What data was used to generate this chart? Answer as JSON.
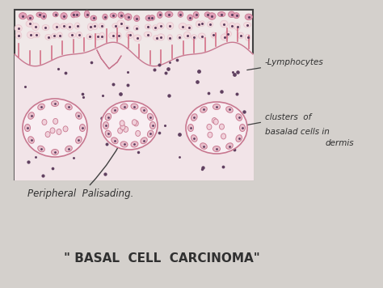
{
  "paper_color": "#d4d0cc",
  "title": "\" BASAL  CELL  CARCINOMA\"",
  "label_lymphocytes": "-Lymphocytes",
  "label_clusters": "clusters  of",
  "label_basal": "basalad cells in",
  "label_dermis": "dermis",
  "label_peripheral": "Peripheral  Palisading.",
  "tissue_bg": "#f0e8e8",
  "cell_color_light": "#e8c8d0",
  "cell_color_dark": "#c87890",
  "dot_color": "#604060",
  "line_color": "#404040",
  "text_color": "#303030",
  "figsize": [
    4.74,
    3.56
  ],
  "dpi": 100
}
